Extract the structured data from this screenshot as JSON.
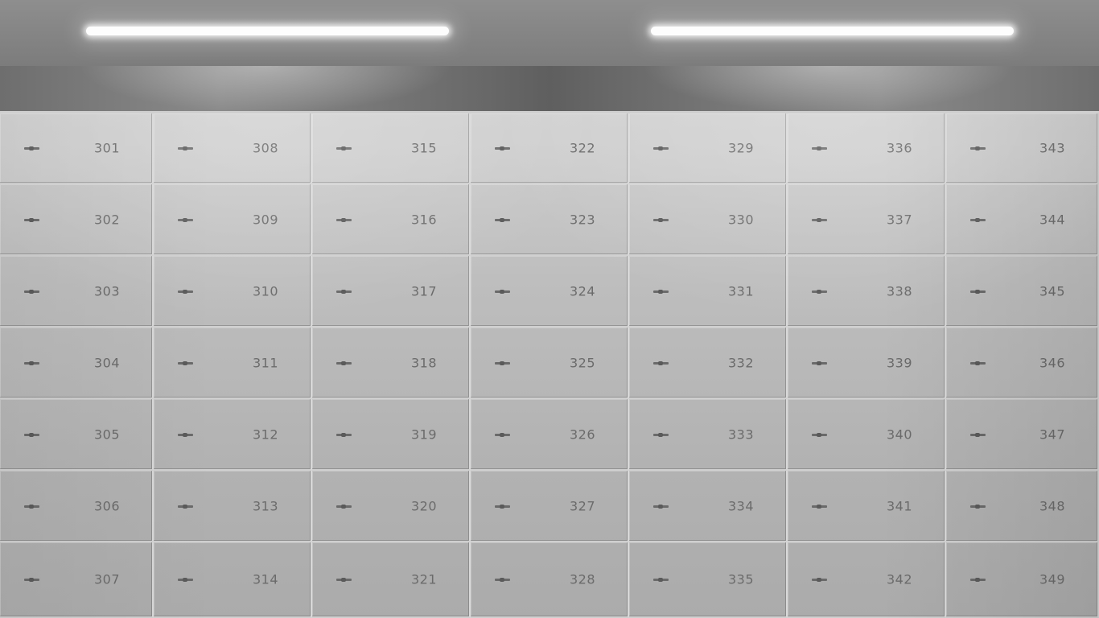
{
  "scene": {
    "colors": {
      "ceiling": "#858585",
      "light": "#fdfdfd",
      "locker_face": "#b9b9b9",
      "locker_seam": "#d8d8d8",
      "label_text": "#6b6b6b",
      "handle": "#6a6a6a"
    },
    "ceiling_lights": [
      "ceiling-light-left",
      "ceiling-light-right"
    ],
    "locker_columns": 7,
    "locker_rows": 7,
    "handle_icon": "handle-icon",
    "lockers": [
      "301",
      "302",
      "303",
      "304",
      "305",
      "306",
      "307",
      "308",
      "309",
      "310",
      "311",
      "312",
      "313",
      "314",
      "315",
      "316",
      "317",
      "318",
      "319",
      "320",
      "321",
      "322",
      "323",
      "324",
      "325",
      "326",
      "327",
      "328",
      "329",
      "330",
      "331",
      "332",
      "333",
      "334",
      "335",
      "336",
      "337",
      "338",
      "339",
      "340",
      "341",
      "342",
      "343",
      "344",
      "345",
      "346",
      "347",
      "348",
      "349"
    ]
  }
}
